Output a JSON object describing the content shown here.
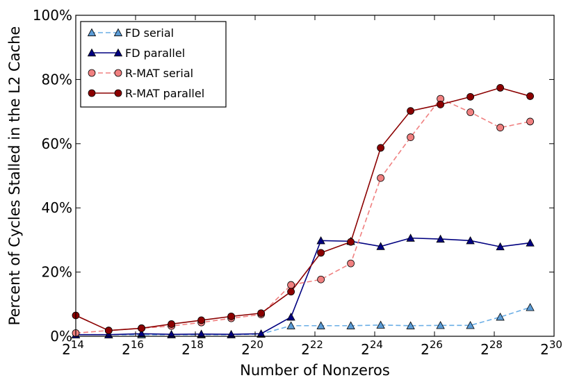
{
  "chart_data": {
    "type": "line",
    "xlabel": "Number of Nonzeros",
    "ylabel": "Percent of Cycles Stalled in the L2 Cache",
    "xscale": "log2",
    "xlim_exponent": [
      14,
      30
    ],
    "x_ticks": [
      {
        "base": "2",
        "exp": "14",
        "value": 14
      },
      {
        "base": "2",
        "exp": "16",
        "value": 16
      },
      {
        "base": "2",
        "exp": "18",
        "value": 18
      },
      {
        "base": "2",
        "exp": "20",
        "value": 20
      },
      {
        "base": "2",
        "exp": "22",
        "value": 22
      },
      {
        "base": "2",
        "exp": "24",
        "value": 24
      },
      {
        "base": "2",
        "exp": "26",
        "value": 26
      },
      {
        "base": "2",
        "exp": "28",
        "value": 28
      },
      {
        "base": "2",
        "exp": "30",
        "value": 30
      }
    ],
    "ylim": [
      0,
      100
    ],
    "y_ticks": [
      {
        "label": "0%",
        "value": 0
      },
      {
        "label": "20%",
        "value": 20
      },
      {
        "label": "40%",
        "value": 40
      },
      {
        "label": "60%",
        "value": 60
      },
      {
        "label": "80%",
        "value": 80
      },
      {
        "label": "100%",
        "value": 100
      }
    ],
    "legend_position": "top-left",
    "series": [
      {
        "name": "FD serial",
        "color": "#6aaee6",
        "fill": "#5b9bd5",
        "dashed": true,
        "marker": "triangle",
        "x_exp": [
          14.0,
          15.1,
          16.2,
          17.2,
          18.2,
          19.2,
          20.2,
          21.2,
          22.2,
          23.2,
          24.2,
          25.2,
          26.2,
          27.2,
          28.2,
          29.2
        ],
        "values": [
          0.5,
          0.5,
          0.5,
          0.5,
          0.5,
          0.5,
          0.7,
          3.3,
          3.3,
          3.3,
          3.5,
          3.3,
          3.4,
          3.4,
          6.0,
          9.0
        ]
      },
      {
        "name": "FD parallel",
        "color": "#000080",
        "fill": "#000080",
        "dashed": false,
        "marker": "triangle",
        "x_exp": [
          14.0,
          15.1,
          16.2,
          17.2,
          18.2,
          19.2,
          20.2,
          21.2,
          22.2,
          23.2,
          24.2,
          25.2,
          26.2,
          27.2,
          28.2,
          29.2
        ],
        "values": [
          0.5,
          0.5,
          0.8,
          0.6,
          0.7,
          0.6,
          0.8,
          6.0,
          29.8,
          29.6,
          28.0,
          30.6,
          30.3,
          29.8,
          27.9,
          29.1
        ]
      },
      {
        "name": "R-MAT serial",
        "color": "#f08080",
        "fill": "#f08080",
        "dashed": true,
        "marker": "circle",
        "x_exp": [
          14.0,
          15.1,
          16.2,
          17.2,
          18.2,
          19.2,
          20.2,
          21.2,
          22.2,
          23.2,
          24.2,
          25.2,
          26.2,
          27.2,
          28.2,
          29.2
        ],
        "values": [
          1.0,
          1.8,
          2.5,
          3.2,
          4.3,
          5.6,
          6.8,
          16.0,
          17.7,
          22.7,
          49.3,
          62.0,
          74.0,
          69.8,
          65.0,
          66.9
        ]
      },
      {
        "name": "R-MAT parallel",
        "color": "#8b0000",
        "fill": "#8b0000",
        "dashed": false,
        "marker": "circle",
        "x_exp": [
          14.0,
          15.1,
          16.2,
          17.2,
          18.2,
          19.2,
          20.2,
          21.2,
          22.2,
          23.2,
          24.2,
          25.2,
          26.2,
          27.2,
          28.2,
          29.2
        ],
        "values": [
          6.5,
          1.8,
          2.5,
          3.8,
          5.0,
          6.2,
          7.2,
          13.9,
          26.0,
          29.4,
          58.7,
          70.2,
          72.2,
          74.6,
          77.4,
          74.8
        ]
      }
    ]
  }
}
